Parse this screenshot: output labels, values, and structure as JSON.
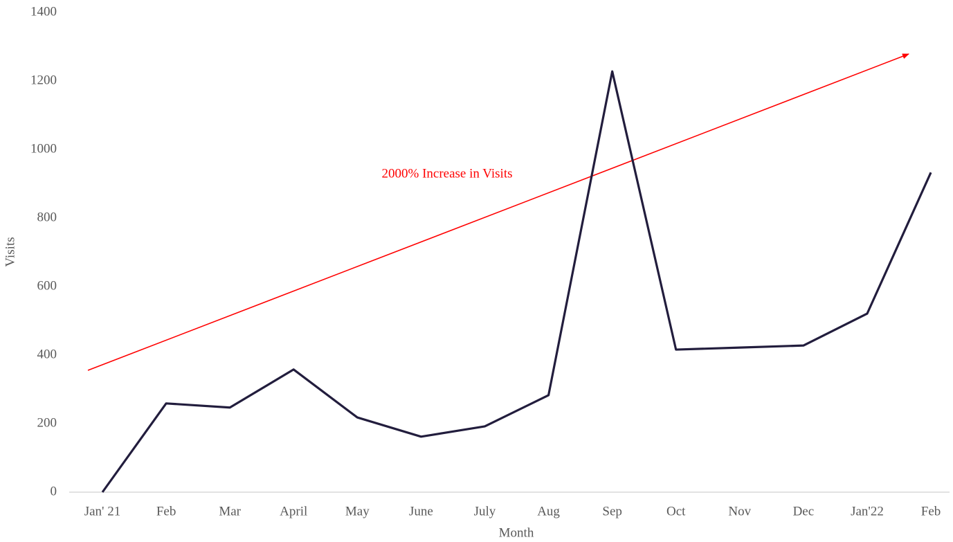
{
  "chart_data": {
    "type": "line",
    "categories": [
      "Jan' 21",
      "Feb",
      "Mar",
      "April",
      "May",
      "June",
      "July",
      "Aug",
      "Sep",
      "Oct",
      "Nov",
      "Dec",
      "Jan'22",
      "Feb"
    ],
    "values": [
      0,
      259,
      247,
      358,
      218,
      162,
      192,
      283,
      1228,
      416,
      422,
      428,
      521,
      933
    ],
    "color": "#221d3d",
    "ylim": [
      0,
      1400
    ],
    "yticks": [
      0,
      200,
      400,
      600,
      800,
      1000,
      1200,
      1400
    ],
    "x_label": "Month",
    "y_label": "Visits",
    "annotation": "2000% Increase in Visits",
    "annotation_color": "#ff0000",
    "grid": false
  }
}
